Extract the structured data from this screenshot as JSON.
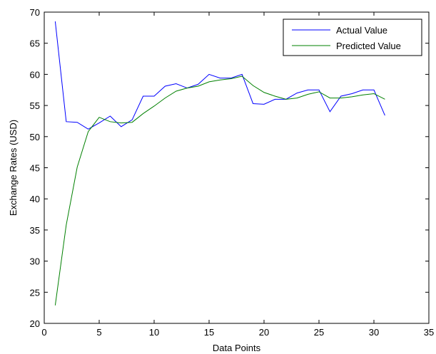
{
  "chart_data": {
    "type": "line",
    "title": "",
    "xlabel": "Data Points",
    "ylabel": "Exchange Rates (USD)",
    "xlim": [
      0,
      35
    ],
    "ylim": [
      20,
      70
    ],
    "xticks": [
      0,
      5,
      10,
      15,
      20,
      25,
      30,
      35
    ],
    "yticks": [
      20,
      25,
      30,
      35,
      40,
      45,
      50,
      55,
      60,
      65,
      70
    ],
    "grid": false,
    "legend_position": "top-right",
    "x": [
      1,
      2,
      3,
      4,
      5,
      6,
      7,
      8,
      9,
      10,
      11,
      12,
      13,
      14,
      15,
      16,
      17,
      18,
      19,
      20,
      21,
      22,
      23,
      24,
      25,
      26,
      27,
      28,
      29,
      30,
      31
    ],
    "series": [
      {
        "name": "Actual Value",
        "color": "#0000ff",
        "values": [
          68.5,
          52.4,
          52.3,
          51.2,
          52.2,
          53.3,
          51.6,
          52.7,
          56.5,
          56.5,
          58.1,
          58.5,
          57.8,
          58.4,
          60.0,
          59.4,
          59.4,
          60.0,
          55.3,
          55.2,
          56.0,
          56.0,
          57.0,
          57.5,
          57.5,
          54.0,
          56.5,
          56.9,
          57.5,
          57.5,
          53.4
        ]
      },
      {
        "name": "Predicted Value",
        "color": "#008000",
        "values": [
          22.9,
          35.8,
          45.1,
          50.8,
          53.1,
          52.4,
          52.2,
          52.3,
          53.7,
          54.9,
          56.2,
          57.3,
          57.8,
          58.1,
          58.8,
          59.1,
          59.3,
          59.7,
          58.2,
          57.1,
          56.5,
          56.0,
          56.2,
          56.8,
          57.2,
          56.2,
          56.2,
          56.4,
          56.7,
          56.9,
          56.0
        ]
      }
    ]
  }
}
